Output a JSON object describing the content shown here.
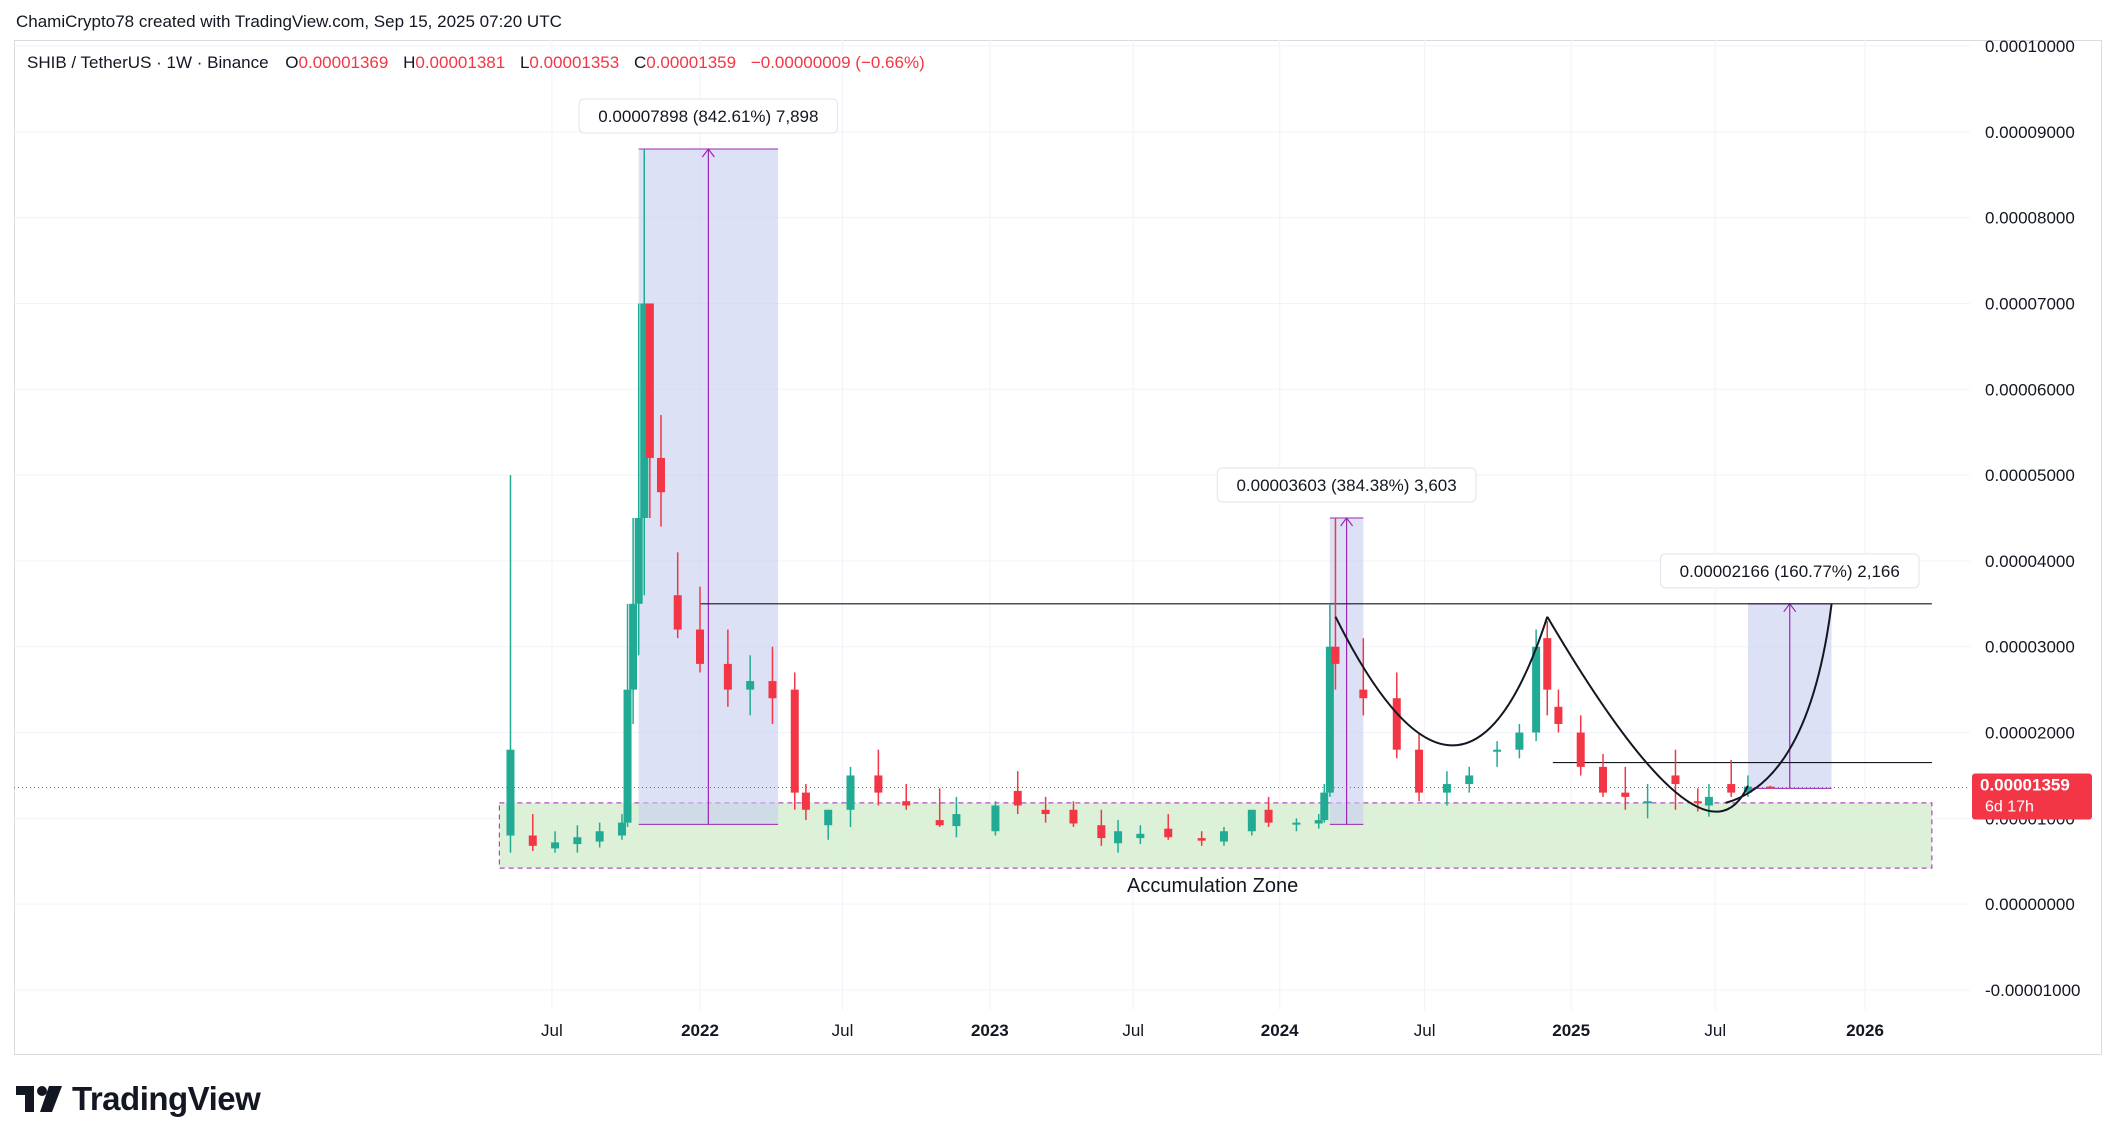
{
  "header": {
    "attribution": "ChamiCrypto78 created with TradingView.com, Sep 15, 2025 07:20 UTC"
  },
  "legend": {
    "symbol": "SHIB / TetherUS · 1W · Binance",
    "open_key": "O",
    "open": "0.00001369",
    "high_key": "H",
    "high": "0.00001381",
    "low_key": "L",
    "low": "0.00001353",
    "close_key": "C",
    "close": "0.00001359",
    "change": "−0.00000009 (−0.66%)"
  },
  "brand": {
    "name": "TradingView",
    "icon": "tradingview-logo-icon"
  },
  "colors": {
    "up": "#22ab94",
    "down": "#f23645",
    "measure_fill": "#c7cdf0",
    "measure_line": "#9c27b0",
    "zone_fill": "#d8efd4",
    "grid": "#f0f3fa"
  },
  "chart_data": {
    "type": "candlestick",
    "x_unit": "week",
    "x_ticks": [
      "Jul",
      "2022",
      "Jul",
      "2023",
      "Jul",
      "2024",
      "Jul",
      "2025",
      "Jul",
      "2026"
    ],
    "y_ticks": [
      "0.00010000",
      "0.00009000",
      "0.00008000",
      "0.00007000",
      "0.00006000",
      "0.00005000",
      "0.00004000",
      "0.00003000",
      "0.00002000",
      "0.00001000",
      "0.00000000",
      "-0.00001000"
    ],
    "ylim": [
      -1e-05,
      0.0001
    ],
    "last_price": {
      "value": 1.359e-05,
      "label": "0.00001359",
      "countdown": "6d 17h"
    },
    "series": [
      {
        "name": "SHIB / TetherUS",
        "x": [
          "2021-05-10",
          "2021-06-07",
          "2021-07-05",
          "2021-08-02",
          "2021-08-30",
          "2021-09-27",
          "2021-10-04",
          "2021-10-11",
          "2021-10-18",
          "2021-10-25",
          "2021-11-01",
          "2021-11-15",
          "2021-12-06",
          "2022-01-03",
          "2022-02-07",
          "2022-03-07",
          "2022-04-04",
          "2022-05-02",
          "2022-05-16",
          "2022-06-13",
          "2022-07-11",
          "2022-08-15",
          "2022-09-19",
          "2022-10-31",
          "2022-11-21",
          "2023-01-09",
          "2023-02-06",
          "2023-03-13",
          "2023-04-17",
          "2023-05-22",
          "2023-06-12",
          "2023-07-10",
          "2023-08-14",
          "2023-09-25",
          "2023-10-23",
          "2023-11-27",
          "2023-12-18",
          "2024-01-22",
          "2024-02-19",
          "2024-02-26",
          "2024-03-04",
          "2024-03-11",
          "2024-04-15",
          "2024-05-27",
          "2024-06-24",
          "2024-07-29",
          "2024-08-26",
          "2024-09-30",
          "2024-10-28",
          "2024-11-18",
          "2024-12-02",
          "2024-12-16",
          "2025-01-13",
          "2025-02-10",
          "2025-03-10",
          "2025-04-07",
          "2025-05-12",
          "2025-06-09",
          "2025-06-23",
          "2025-07-21",
          "2025-08-11",
          "2025-09-08"
        ],
        "open": [
          8e-06,
          8e-06,
          6.5e-06,
          7e-06,
          7.3e-06,
          8e-06,
          9.5e-06,
          2.5e-05,
          3.5e-05,
          4.5e-05,
          7e-05,
          5.2e-05,
          3.6e-05,
          3.2e-05,
          2.8e-05,
          2.5e-05,
          2.6e-05,
          2.5e-05,
          1.3e-05,
          9.2e-06,
          1.1e-05,
          1.5e-05,
          1.2e-05,
          9.8e-06,
          9.1e-06,
          8.5e-06,
          1.32e-05,
          1.1e-05,
          1.1e-05,
          9.2e-06,
          7.1e-06,
          7.7e-06,
          8.8e-06,
          7.7e-06,
          7.3e-06,
          8.5e-06,
          1.1e-05,
          9.3e-06,
          9.4e-06,
          9.8e-06,
          1.3e-05,
          3e-05,
          2.5e-05,
          2.4e-05,
          1.8e-05,
          1.3e-05,
          1.4e-05,
          1.8e-05,
          1.8e-05,
          2e-05,
          3.1e-05,
          2.3e-05,
          2e-05,
          1.6e-05,
          1.3e-05,
          1.2e-05,
          1.5e-05,
          1.2e-05,
          1.15e-05,
          1.4e-05,
          1.3e-05,
          1.37e-05
        ],
        "high": [
          5e-05,
          1.05e-05,
          8.5e-06,
          9.2e-06,
          9.5e-06,
          1.05e-05,
          3.5e-05,
          4.5e-05,
          7e-05,
          8.8e-05,
          7e-05,
          5.7e-05,
          4.1e-05,
          3.7e-05,
          3.2e-05,
          2.9e-05,
          3e-05,
          2.7e-05,
          1.4e-05,
          1.1e-05,
          1.6e-05,
          1.8e-05,
          1.4e-05,
          1.35e-05,
          1.25e-05,
          1.2e-05,
          1.55e-05,
          1.25e-05,
          1.2e-05,
          1.1e-05,
          9.8e-06,
          9.2e-06,
          1.05e-05,
          8.5e-06,
          9e-06,
          1.1e-05,
          1.25e-05,
          1e-05,
          1.05e-05,
          1.4e-05,
          3.5e-05,
          4.5e-05,
          3.1e-05,
          2.7e-05,
          2e-05,
          1.55e-05,
          1.6e-05,
          1.9e-05,
          2.1e-05,
          3.2e-05,
          3.3e-05,
          2.5e-05,
          2.2e-05,
          1.75e-05,
          1.6e-05,
          1.4e-05,
          1.8e-05,
          1.35e-05,
          1.4e-05,
          1.68e-05,
          1.5e-05,
          1.38e-05
        ],
        "low": [
          6e-06,
          6.2e-06,
          6e-06,
          6e-06,
          6.6e-06,
          7.5e-06,
          9e-06,
          2.1e-05,
          2.9e-05,
          3.6e-05,
          4.5e-05,
          4.4e-05,
          3.1e-05,
          2.7e-05,
          2.3e-05,
          2.2e-05,
          2.1e-05,
          1.1e-05,
          9.8e-06,
          7.5e-06,
          9e-06,
          1.15e-05,
          1.1e-05,
          9e-06,
          7.8e-06,
          8e-06,
          1.05e-05,
          9.5e-06,
          9e-06,
          6.8e-06,
          6e-06,
          7e-06,
          7.5e-06,
          6.8e-06,
          6.8e-06,
          8e-06,
          9e-06,
          8.5e-06,
          8.8e-06,
          9.5e-06,
          1.25e-05,
          2.5e-05,
          2.2e-05,
          1.7e-05,
          1.2e-05,
          1.15e-05,
          1.3e-05,
          1.6e-05,
          1.7e-05,
          1.9e-05,
          2.2e-05,
          2e-05,
          1.5e-05,
          1.25e-05,
          1.1e-05,
          1e-05,
          1.1e-05,
          1.08e-05,
          1.02e-05,
          1.25e-05,
          1.25e-05,
          1.35e-05
        ],
        "close": [
          1.8e-05,
          6.8e-06,
          7.2e-06,
          7.8e-06,
          8.5e-06,
          9.5e-06,
          2.5e-05,
          3.5e-05,
          4.5e-05,
          7e-05,
          5.2e-05,
          4.8e-05,
          3.2e-05,
          2.8e-05,
          2.5e-05,
          2.6e-05,
          2.4e-05,
          1.3e-05,
          1.1e-05,
          1.1e-05,
          1.5e-05,
          1.3e-05,
          1.15e-05,
          9.2e-06,
          1.05e-05,
          1.15e-05,
          1.15e-05,
          1.05e-05,
          9.4e-06,
          7.7e-06,
          8.5e-06,
          8.2e-06,
          7.8e-06,
          7.4e-06,
          8.5e-06,
          1.1e-05,
          9.5e-06,
          9.5e-06,
          9.8e-06,
          1.3e-05,
          3e-05,
          2.8e-05,
          2.4e-05,
          1.8e-05,
          1.3e-05,
          1.4e-05,
          1.5e-05,
          1.8e-05,
          2e-05,
          3e-05,
          2.5e-05,
          2.1e-05,
          1.6e-05,
          1.3e-05,
          1.25e-05,
          1.2e-05,
          1.4e-05,
          1.18e-05,
          1.25e-05,
          1.3e-05,
          1.37e-05,
          1.359e-05
        ]
      }
    ],
    "annotations": [
      {
        "type": "price-range",
        "label": "0.00007898 (842.61%) 7,898",
        "from_date": "2021-10-18",
        "to_date": "2022-04-11",
        "from_price": 9.3e-06,
        "to_price": 8.8e-05
      },
      {
        "type": "price-range",
        "label": "0.00003603 (384.38%) 3,603",
        "from_date": "2024-03-04",
        "to_date": "2024-04-15",
        "from_price": 9.3e-06,
        "to_price": 4.5e-05
      },
      {
        "type": "price-range",
        "label": "0.00002166 (160.77%) 2,166",
        "from_date": "2025-08-11",
        "to_date": "2025-11-24",
        "from_price": 1.35e-05,
        "to_price": 3.5e-05
      },
      {
        "type": "horizontal-line",
        "value": 3.5e-05,
        "from_date": "2022-01-03",
        "to_date": "2026-03-30"
      },
      {
        "type": "horizontal-line",
        "value": 1.65e-05,
        "from_date": "2024-12-09",
        "to_date": "2026-03-30"
      },
      {
        "type": "zone",
        "label": "Accumulation Zone",
        "from_date": "2021-04-26",
        "to_date": "2026-03-30",
        "from_price": 4.2e-06,
        "to_price": 1.18e-05
      }
    ]
  }
}
